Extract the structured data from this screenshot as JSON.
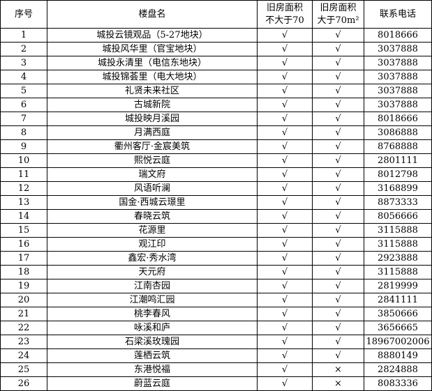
{
  "table": {
    "header": [
      "序号",
      "楼盘名",
      [
        "旧房面积",
        "不大于70"
      ],
      [
        "旧房面积",
        "大于70m²"
      ],
      "联系电话"
    ],
    "rows": [
      [
        "1",
        "城投云镜观品（5-27地块）",
        "√",
        "√",
        "8018666"
      ],
      [
        "2",
        "城投风华里（官宝地块）",
        "√",
        "√",
        "3037888"
      ],
      [
        "3",
        "城投永清里（电信东地块）",
        "√",
        "√",
        "3037888"
      ],
      [
        "4",
        "城投锦荟里（电大地块）",
        "√",
        "√",
        "3037888"
      ],
      [
        "5",
        "礼贤未来社区",
        "√",
        "√",
        "3037888"
      ],
      [
        "6",
        "古城新院",
        "√",
        "√",
        "3037888"
      ],
      [
        "7",
        "城投映月溪园",
        "√",
        "√",
        "8018666"
      ],
      [
        "8",
        "月满西庭",
        "√",
        "√",
        "3086888"
      ],
      [
        "9",
        "衢州客厅·金宸美筑",
        "√",
        "√",
        "8768888"
      ],
      [
        "10",
        "熙悦云庭",
        "√",
        "√",
        "2801111"
      ],
      [
        "11",
        "瑞文府",
        "√",
        "√",
        "8012798"
      ],
      [
        "12",
        "风语听澜",
        "√",
        "√",
        "3168899"
      ],
      [
        "13",
        "国金·西城云璟里",
        "√",
        "√",
        "8873333"
      ],
      [
        "14",
        "春晓云筑",
        "√",
        "√",
        "8056666"
      ],
      [
        "15",
        "花源里",
        "√",
        "√",
        "3115888"
      ],
      [
        "16",
        "观江印",
        "√",
        "√",
        "3115888"
      ],
      [
        "17",
        "鑫宏·秀水湾",
        "√",
        "√",
        "2923888"
      ],
      [
        "18",
        "天元府",
        "√",
        "√",
        "3115888"
      ],
      [
        "19",
        "江南杏园",
        "√",
        "√",
        "2819999"
      ],
      [
        "20",
        "江潮鸣汇园",
        "√",
        "√",
        "2841111"
      ],
      [
        "21",
        "桃李春风",
        "√",
        "√",
        "3850666"
      ],
      [
        "22",
        "咏溪和庐",
        "√",
        "√",
        "3656665"
      ],
      [
        "23",
        "石梁溪玫瑰园",
        "√",
        "√",
        "18967002006"
      ],
      [
        "24",
        "莲栖云筑",
        "√",
        "√",
        "8880149"
      ],
      [
        "25",
        "东港悦福",
        "√",
        "×",
        "2824888"
      ],
      [
        "26",
        "蔚蓝云庭",
        "√",
        "×",
        "8083336"
      ]
    ]
  }
}
